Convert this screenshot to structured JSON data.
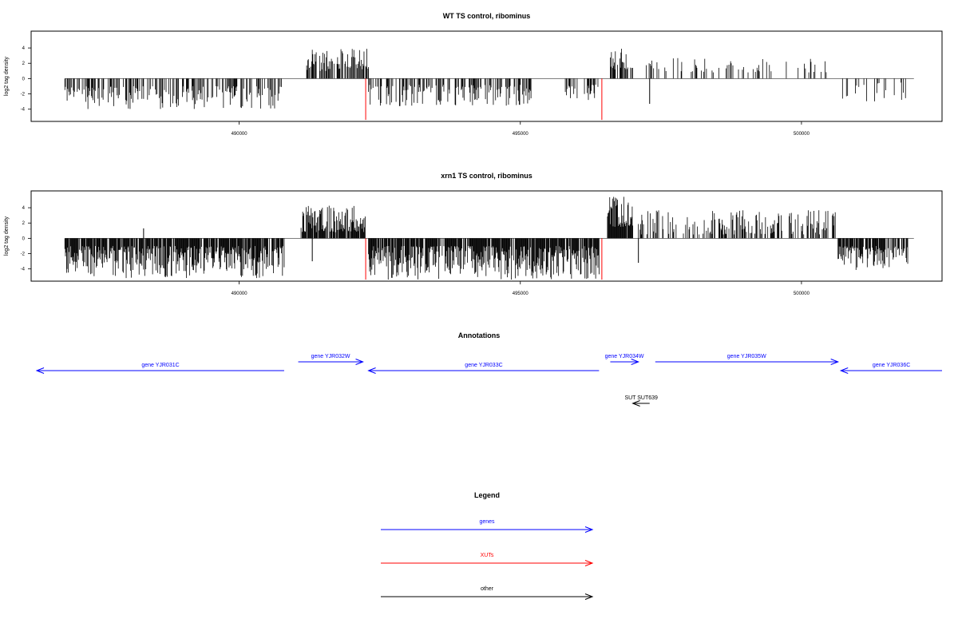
{
  "chart_data": [
    {
      "type": "bar",
      "title": "WT TS control, ribominus",
      "ylabel": "log2 tag density",
      "xlabel": "",
      "x_ticks": [
        490000,
        495000,
        500000
      ],
      "y_ticks": [
        -4,
        -2,
        0,
        2,
        4
      ],
      "xlim": [
        486300,
        502500
      ],
      "ylim": [
        -5.6,
        6.2
      ],
      "series": [
        {
          "color": "#000000",
          "segments": [
            {
              "from": 486900,
              "to": 490800,
              "sign": -1,
              "min": 1.0,
              "max": 4.0,
              "density": 0.45,
              "seed": 11
            },
            {
              "from": 491200,
              "to": 492300,
              "sign": 1,
              "min": 1.0,
              "max": 3.9,
              "density": 0.55,
              "seed": 12
            },
            {
              "from": 492300,
              "to": 495200,
              "sign": -1,
              "min": 0.8,
              "max": 3.6,
              "density": 0.45,
              "seed": 13
            },
            {
              "from": 495800,
              "to": 496400,
              "sign": -1,
              "min": 0.8,
              "max": 3.0,
              "density": 0.4,
              "seed": 14
            },
            {
              "from": 496600,
              "to": 497000,
              "sign": 1,
              "min": 1.2,
              "max": 4.1,
              "density": 0.7,
              "seed": 15
            },
            {
              "from": 497200,
              "to": 500500,
              "sign": 1,
              "min": 0.8,
              "max": 2.8,
              "density": 0.18,
              "seed": 16
            },
            {
              "from": 500600,
              "to": 501900,
              "sign": -1,
              "min": 0.5,
              "max": 3.0,
              "density": 0.12,
              "seed": 17
            }
          ],
          "points": [
            {
              "x": 497300,
              "y": -3.3
            }
          ]
        },
        {
          "color": "#ff0000",
          "points": [
            {
              "x": 492250,
              "y": -5.4
            },
            {
              "x": 496450,
              "y": -5.4
            }
          ]
        }
      ]
    },
    {
      "type": "bar",
      "title": "xrn1 TS control, ribominus",
      "ylabel": "log2 tag density",
      "xlabel": "",
      "x_ticks": [
        490000,
        495000,
        500000
      ],
      "y_ticks": [
        -4,
        -2,
        0,
        2,
        4
      ],
      "xlim": [
        486300,
        502500
      ],
      "ylim": [
        -5.6,
        6.2
      ],
      "series": [
        {
          "color": "#000000",
          "segments": [
            {
              "from": 486900,
              "to": 490800,
              "sign": -1,
              "min": 1.0,
              "max": 5.2,
              "density": 0.85,
              "seed": 21
            },
            {
              "from": 491100,
              "to": 492250,
              "sign": 1,
              "min": 0.8,
              "max": 4.3,
              "density": 0.85,
              "seed": 22
            },
            {
              "from": 492300,
              "to": 496400,
              "sign": -1,
              "min": 1.0,
              "max": 5.4,
              "density": 0.85,
              "seed": 23
            },
            {
              "from": 496550,
              "to": 497000,
              "sign": 1,
              "min": 1.5,
              "max": 5.6,
              "density": 0.9,
              "seed": 24
            },
            {
              "from": 497100,
              "to": 500600,
              "sign": 1,
              "min": 0.5,
              "max": 3.7,
              "density": 0.45,
              "seed": 25
            },
            {
              "from": 500650,
              "to": 501900,
              "sign": -1,
              "min": 1.0,
              "max": 4.2,
              "density": 0.75,
              "seed": 26
            }
          ],
          "points": [
            {
              "x": 491300,
              "y": -3.0
            },
            {
              "x": 497100,
              "y": -3.2
            },
            {
              "x": 488300,
              "y": 1.3
            }
          ]
        },
        {
          "color": "#ff0000",
          "points": [
            {
              "x": 492250,
              "y": -5.4
            },
            {
              "x": 496450,
              "y": -5.4
            }
          ]
        }
      ]
    }
  ],
  "annotations": {
    "title": "Annotations",
    "items": [
      {
        "label": "gene YJR031C",
        "start": 486400,
        "end": 490800,
        "dir": "left",
        "row": 2,
        "color": "#0000ff"
      },
      {
        "label": "gene YJR032W",
        "start": 491050,
        "end": 492200,
        "dir": "right",
        "row": 1,
        "color": "#0000ff"
      },
      {
        "label": "gene YJR033C",
        "start": 492300,
        "end": 496400,
        "dir": "left",
        "row": 2,
        "color": "#0000ff"
      },
      {
        "label": "gene YJR034W",
        "start": 496600,
        "end": 497100,
        "dir": "right",
        "row": 1,
        "color": "#0000ff"
      },
      {
        "label": "gene YJR035W",
        "start": 497400,
        "end": 500650,
        "dir": "right",
        "row": 1,
        "color": "#0000ff"
      },
      {
        "label": "gene YJR036C",
        "start": 500700,
        "end": 502500,
        "dir": "left",
        "row": 2,
        "color": "#0000ff"
      },
      {
        "label": "SUT SUT639",
        "start": 497000,
        "end": 497300,
        "dir": "left",
        "row": 3,
        "color": "#000000"
      }
    ]
  },
  "legend": {
    "title": "Legend",
    "items": [
      {
        "label": "genes",
        "color": "#0000ff"
      },
      {
        "label": "XUTs",
        "color": "#ff0000"
      },
      {
        "label": "other",
        "color": "#000000"
      }
    ]
  }
}
